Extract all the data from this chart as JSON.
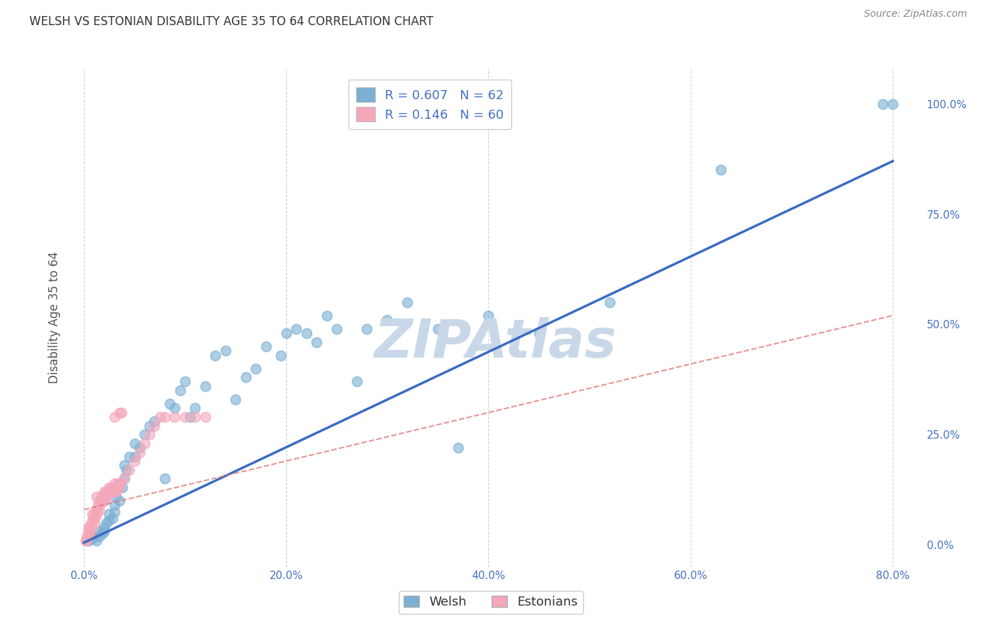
{
  "title": "WELSH VS ESTONIAN DISABILITY AGE 35 TO 64 CORRELATION CHART",
  "source": "Source: ZipAtlas.com",
  "ylabel": "Disability Age 35 to 64",
  "xlabel_ticks": [
    "0.0%",
    "20.0%",
    "40.0%",
    "60.0%",
    "80.0%"
  ],
  "xlabel_vals": [
    0.0,
    20.0,
    40.0,
    60.0,
    80.0
  ],
  "ylabel_ticks": [
    "0.0%",
    "25.0%",
    "50.0%",
    "75.0%",
    "100.0%"
  ],
  "ylabel_vals": [
    0.0,
    25.0,
    50.0,
    75.0,
    100.0
  ],
  "xlim": [
    -1.5,
    83.0
  ],
  "ylim": [
    -5.0,
    108.0
  ],
  "welsh_R": 0.607,
  "welsh_N": 62,
  "estonian_R": 0.146,
  "estonian_N": 60,
  "welsh_color": "#7BAFD4",
  "estonian_color": "#F4A7B9",
  "welsh_line_color": "#3A6BC4",
  "estonian_line_color": "#E07070",
  "watermark": "ZIPAtlas",
  "watermark_color": "#C8D8E8",
  "background_color": "#FFFFFF",
  "grid_color": "#C8D4DC",
  "title_color": "#333333",
  "axis_label_color": "#4472C4",
  "welsh_line_x0": 0.0,
  "welsh_line_y0": 0.5,
  "welsh_line_x1": 80.0,
  "welsh_line_y1": 87.0,
  "estonian_line_x0": 0.0,
  "estonian_line_y0": 8.0,
  "estonian_line_x1": 80.0,
  "estonian_line_y1": 52.0,
  "welsh_scatter_x": [
    0.5,
    0.8,
    1.0,
    1.2,
    1.5,
    1.5,
    1.8,
    2.0,
    2.0,
    2.2,
    2.5,
    2.5,
    2.8,
    3.0,
    3.0,
    3.2,
    3.5,
    3.5,
    3.8,
    4.0,
    4.0,
    4.2,
    4.5,
    5.0,
    5.0,
    5.5,
    6.0,
    6.5,
    7.0,
    8.0,
    8.5,
    9.0,
    9.5,
    10.0,
    10.5,
    11.0,
    12.0,
    13.0,
    14.0,
    15.0,
    16.0,
    17.0,
    18.0,
    19.5,
    20.0,
    21.0,
    22.0,
    23.0,
    24.0,
    25.0,
    27.0,
    28.0,
    30.0,
    32.0,
    35.0,
    37.0,
    40.0,
    45.0,
    52.0,
    63.0,
    79.0,
    80.0
  ],
  "welsh_scatter_y": [
    1.0,
    1.5,
    2.0,
    1.0,
    2.0,
    3.0,
    2.5,
    3.0,
    4.0,
    5.0,
    5.5,
    7.0,
    6.0,
    7.5,
    9.0,
    11.0,
    10.0,
    14.0,
    13.0,
    15.0,
    18.0,
    17.0,
    20.0,
    20.0,
    23.0,
    22.0,
    25.0,
    27.0,
    28.0,
    15.0,
    32.0,
    31.0,
    35.0,
    37.0,
    29.0,
    31.0,
    36.0,
    43.0,
    44.0,
    33.0,
    38.0,
    40.0,
    45.0,
    43.0,
    48.0,
    49.0,
    48.0,
    46.0,
    52.0,
    49.0,
    37.0,
    49.0,
    51.0,
    55.0,
    49.0,
    22.0,
    52.0,
    48.0,
    55.0,
    85.0,
    100.0,
    100.0
  ],
  "estonian_scatter_x": [
    0.2,
    0.3,
    0.4,
    0.5,
    0.5,
    0.6,
    0.7,
    0.8,
    0.9,
    1.0,
    1.0,
    1.1,
    1.2,
    1.3,
    1.4,
    1.5,
    1.5,
    1.6,
    1.7,
    1.8,
    1.9,
    2.0,
    2.0,
    2.1,
    2.2,
    2.3,
    2.4,
    2.5,
    2.6,
    2.7,
    2.8,
    2.9,
    3.0,
    3.0,
    3.1,
    3.2,
    3.3,
    3.4,
    3.5,
    3.5,
    3.6,
    3.7,
    4.0,
    4.5,
    5.0,
    5.5,
    6.0,
    6.5,
    7.0,
    7.5,
    8.0,
    9.0,
    10.0,
    11.0,
    12.0,
    0.2,
    0.5,
    0.8,
    1.2,
    3.0
  ],
  "estonian_scatter_y": [
    1.0,
    2.0,
    3.0,
    2.0,
    4.0,
    3.0,
    5.0,
    4.0,
    6.0,
    5.0,
    7.0,
    6.0,
    8.0,
    7.0,
    9.0,
    8.0,
    10.0,
    9.0,
    11.0,
    10.0,
    11.0,
    12.0,
    10.0,
    11.0,
    12.0,
    11.0,
    12.0,
    13.0,
    12.0,
    13.0,
    12.0,
    13.0,
    14.0,
    12.0,
    13.0,
    12.0,
    13.0,
    14.0,
    13.0,
    30.0,
    14.0,
    30.0,
    15.0,
    17.0,
    19.0,
    21.0,
    23.0,
    25.0,
    27.0,
    29.0,
    29.0,
    29.0,
    29.0,
    29.0,
    29.0,
    1.0,
    4.0,
    7.0,
    11.0,
    29.0
  ]
}
